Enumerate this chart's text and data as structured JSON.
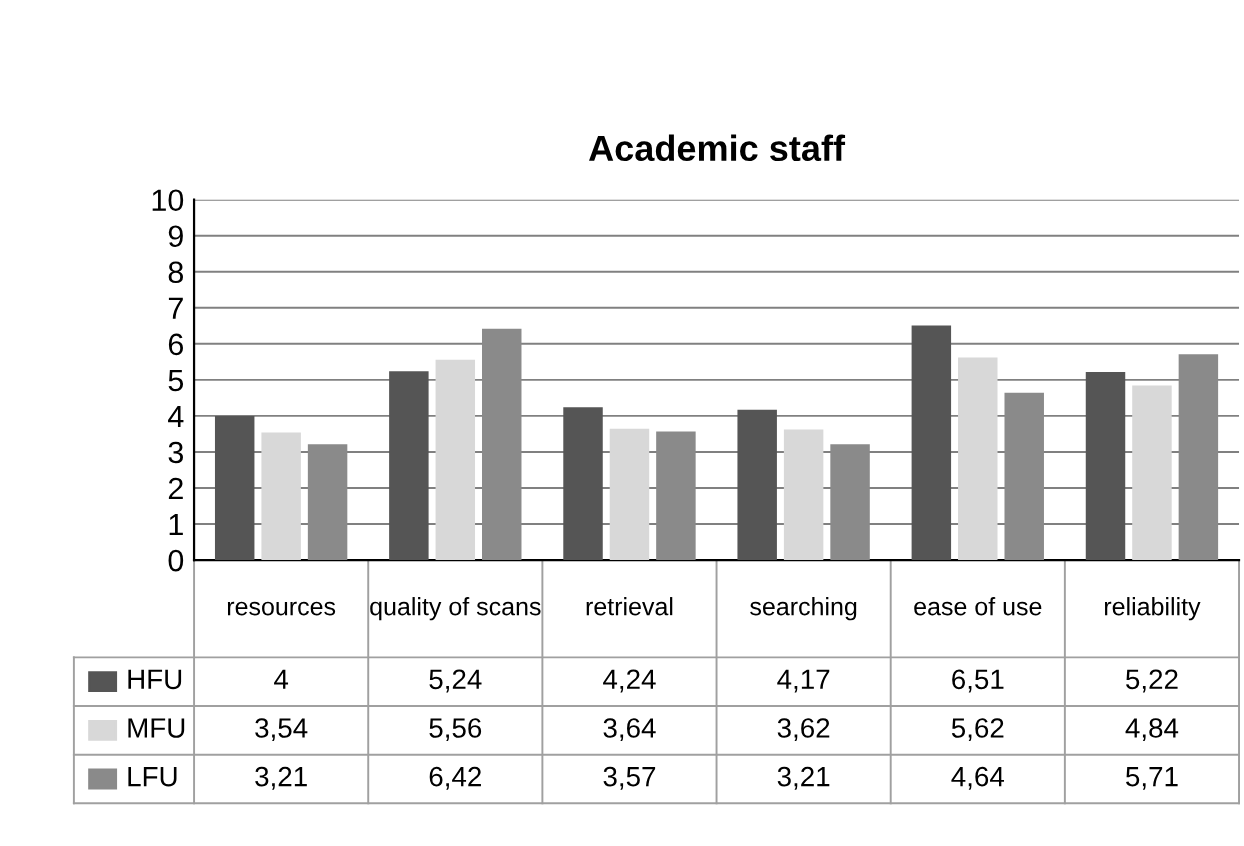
{
  "chart_data": {
    "type": "bar",
    "title": "Academic staff",
    "categories": [
      "resources",
      "quality of scans",
      "retrieval",
      "searching",
      "ease of use",
      "reliability"
    ],
    "series": [
      {
        "name": "HFU",
        "color": "#555555",
        "values": [
          4,
          5.24,
          4.24,
          4.17,
          6.51,
          5.22
        ],
        "value_labels": [
          "4",
          "5,24",
          "4,24",
          "4,17",
          "6,51",
          "5,22"
        ]
      },
      {
        "name": "MFU",
        "color": "#d8d8d8",
        "values": [
          3.54,
          5.56,
          3.64,
          3.62,
          5.62,
          4.84
        ],
        "value_labels": [
          "3,54",
          "5,56",
          "3,64",
          "3,62",
          "5,62",
          "4,84"
        ]
      },
      {
        "name": "LFU",
        "color": "#8a8a8a",
        "values": [
          3.21,
          6.42,
          3.57,
          3.21,
          4.64,
          5.71
        ],
        "value_labels": [
          "3,21",
          "6,42",
          "3,57",
          "3,21",
          "4,64",
          "5,71"
        ]
      }
    ],
    "ylim": [
      0,
      10
    ],
    "yticks": [
      0,
      1,
      2,
      3,
      4,
      5,
      6,
      7,
      8,
      9,
      10
    ],
    "grid": "y",
    "legend": "bottom left"
  }
}
